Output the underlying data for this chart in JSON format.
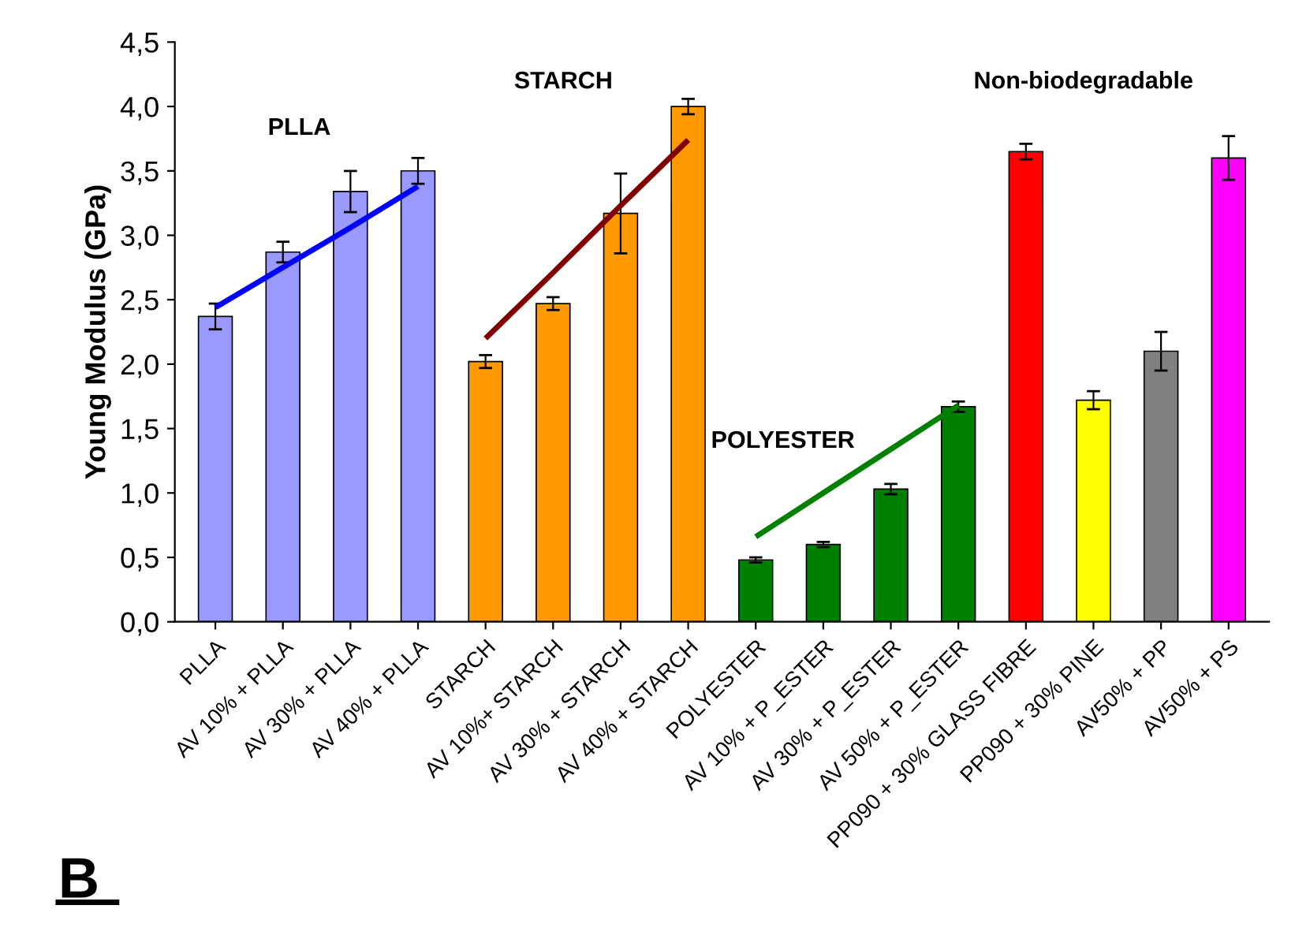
{
  "chart_data": {
    "type": "bar",
    "ylabel": "Young Modulus (GPa)",
    "categories": [
      "PLLA",
      "AV 10% + PLLA",
      "AV 30% + PLLA",
      "AV 40% + PLLA",
      "STARCH",
      "AV 10%+ STARCH",
      "AV 30% + STARCH",
      "AV 40% + STARCH",
      "POLYESTER",
      "AV 10% + P_ESTER",
      "AV 30% + P_ESTER",
      "AV 50% + P_ESTER",
      "PP090 + 30% GLASS FIBRE",
      "PP090 + 30% PINE",
      "AV50% + PP",
      "AV50% + PS"
    ],
    "values": [
      2.37,
      2.87,
      3.34,
      3.5,
      2.02,
      2.47,
      3.17,
      4.0,
      0.48,
      0.6,
      1.03,
      1.67,
      3.65,
      1.72,
      2.1,
      3.6
    ],
    "errors": [
      0.1,
      0.08,
      0.16,
      0.1,
      0.05,
      0.05,
      0.31,
      0.06,
      0.02,
      0.02,
      0.04,
      0.04,
      0.06,
      0.07,
      0.15,
      0.17
    ],
    "colors": [
      "#9999ff",
      "#9999ff",
      "#9999ff",
      "#9999ff",
      "#ff9900",
      "#ff9900",
      "#ff9900",
      "#ff9900",
      "#008000",
      "#008000",
      "#008000",
      "#008000",
      "#ff0000",
      "#ffff00",
      "#808080",
      "#ff00ff"
    ],
    "series": [
      {
        "type": "line",
        "color": "#0000ff",
        "values": [
          2.44,
          2.75,
          3.06,
          3.38,
          null,
          null,
          null,
          null,
          null,
          null,
          null,
          null,
          null,
          null,
          null,
          null
        ]
      },
      {
        "type": "line",
        "color": "#800000",
        "values": [
          null,
          null,
          null,
          null,
          2.2,
          2.71,
          3.23,
          3.74,
          null,
          null,
          null,
          null,
          null,
          null,
          null,
          null
        ]
      },
      {
        "type": "line",
        "color": "#008000",
        "values": [
          null,
          null,
          null,
          null,
          null,
          null,
          null,
          null,
          0.66,
          1.0,
          1.34,
          1.68,
          null,
          null,
          null,
          null
        ]
      }
    ],
    "ylim": [
      0,
      4.5
    ],
    "yticks": [
      {
        "value": 0,
        "label": "0,0"
      },
      {
        "value": 0.5,
        "label": "0,5"
      },
      {
        "value": 1,
        "label": "1,0"
      },
      {
        "value": 1.5,
        "label": "1,5"
      },
      {
        "value": 2,
        "label": "2,0"
      },
      {
        "value": 2.5,
        "label": "2,5"
      },
      {
        "value": 3,
        "label": "3,0"
      },
      {
        "value": 3.5,
        "label": "3,5"
      },
      {
        "value": 4,
        "label": "4,0"
      },
      {
        "value": 4.5,
        "label": "4,5"
      }
    ],
    "grid": false,
    "annotations": [
      "PLLA",
      "STARCH",
      "POLYESTER",
      "Non-biodegradable",
      "B"
    ]
  }
}
